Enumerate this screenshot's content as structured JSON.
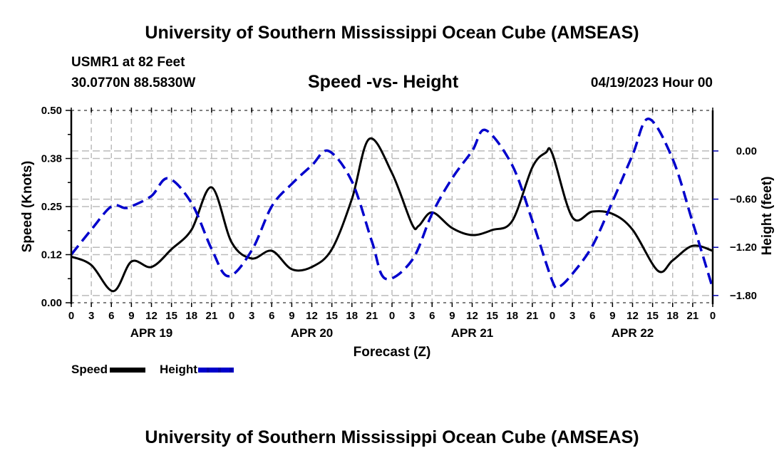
{
  "page": {
    "top_title": "University of Southern Mississippi Ocean Cube (AMSEAS)",
    "bottom_title": "University of Southern Mississippi Ocean Cube (AMSEAS)",
    "station_line": "USMR1 at 82 Feet",
    "coords_line": "30.0770N  88.5830W",
    "chart_title": "Speed -vs- Height",
    "date_line": "04/19/2023 Hour 00"
  },
  "legend": {
    "speed_label": "Speed",
    "height_label": "Height"
  },
  "colors": {
    "speed": "#000000",
    "height": "#0000cc",
    "grid": "#bbbbbb"
  },
  "chart_data": {
    "type": "line",
    "title": "Speed -vs- Height",
    "xlabel": "Forecast (Z)",
    "ylabel": "Speed (Knots)",
    "y2label": "Height (feet)",
    "x_unit": "forecast hour from 04/19/2023 00Z",
    "xlim": [
      0,
      96
    ],
    "ylim": [
      0,
      0.5
    ],
    "y2lim": [
      -1.89,
      0.505
    ],
    "grid": true,
    "legend_position": "bottom-left",
    "x_tick_hours": [
      0,
      3,
      6,
      9,
      12,
      15,
      18,
      21,
      24,
      27,
      30,
      33,
      36,
      39,
      42,
      45,
      48,
      51,
      54,
      57,
      60,
      63,
      66,
      69,
      72,
      75,
      78,
      81,
      84,
      87,
      90,
      93,
      96
    ],
    "x_tick_labels": [
      "0",
      "3",
      "6",
      "9",
      "12",
      "15",
      "18",
      "21",
      "0",
      "3",
      "6",
      "9",
      "12",
      "15",
      "18",
      "21",
      "0",
      "3",
      "6",
      "9",
      "12",
      "15",
      "18",
      "21",
      "0",
      "3",
      "6",
      "9",
      "12",
      "15",
      "18",
      "21",
      "0"
    ],
    "day_labels": [
      {
        "label": "APR 19",
        "hour": 12
      },
      {
        "label": "APR 20",
        "hour": 36
      },
      {
        "label": "APR 21",
        "hour": 60
      },
      {
        "label": "APR 22",
        "hour": 84
      }
    ],
    "y_ticks": [
      0.0,
      0.125,
      0.25,
      0.375,
      0.5
    ],
    "y_tick_labels": [
      "0.00",
      "0.12",
      "0.25",
      "0.38",
      "0.50"
    ],
    "y2_ticks": [
      0.0,
      -0.6,
      -1.2,
      -1.8
    ],
    "y2_tick_labels": [
      "0.00",
      "−0.60",
      "−1.20",
      "−1.80"
    ],
    "series": [
      {
        "name": "Speed",
        "axis": "left",
        "style": "solid",
        "x": [
          0,
          3,
          6.3,
          9,
          12,
          15,
          18,
          21,
          24,
          27,
          30,
          33,
          36,
          39,
          42,
          44.6,
          48,
          51,
          52,
          54,
          57,
          60,
          63,
          66,
          69,
          71,
          72,
          75,
          78,
          81,
          84,
          87.8,
          90,
          93,
          96
        ],
        "values": [
          0.12,
          0.098,
          0.03,
          0.107,
          0.093,
          0.139,
          0.19,
          0.3,
          0.157,
          0.115,
          0.135,
          0.087,
          0.093,
          0.139,
          0.27,
          0.426,
          0.337,
          0.204,
          0.2,
          0.235,
          0.194,
          0.176,
          0.189,
          0.213,
          0.352,
          0.39,
          0.387,
          0.222,
          0.237,
          0.231,
          0.19,
          0.083,
          0.11,
          0.148,
          0.135
        ]
      },
      {
        "name": "Height",
        "axis": "right",
        "style": "dashed",
        "x": [
          0,
          3,
          6,
          8,
          9,
          12,
          14.5,
          18,
          21,
          23.5,
          27,
          30,
          33,
          36,
          38.5,
          42,
          45,
          47,
          51,
          54,
          57,
          60,
          62,
          66,
          69,
          72,
          73,
          75,
          78,
          81,
          84,
          86.4,
          90,
          93,
          96
        ],
        "values": [
          -1.29,
          -0.98,
          -0.69,
          -0.71,
          -0.69,
          -0.56,
          -0.34,
          -0.65,
          -1.22,
          -1.56,
          -1.24,
          -0.69,
          -0.41,
          -0.18,
          0.0,
          -0.38,
          -1.13,
          -1.59,
          -1.36,
          -0.78,
          -0.34,
          0.0,
          0.26,
          -0.18,
          -0.87,
          -1.62,
          -1.69,
          -1.53,
          -1.18,
          -0.63,
          -0.05,
          0.4,
          -0.1,
          -0.89,
          -1.71
        ]
      }
    ]
  }
}
